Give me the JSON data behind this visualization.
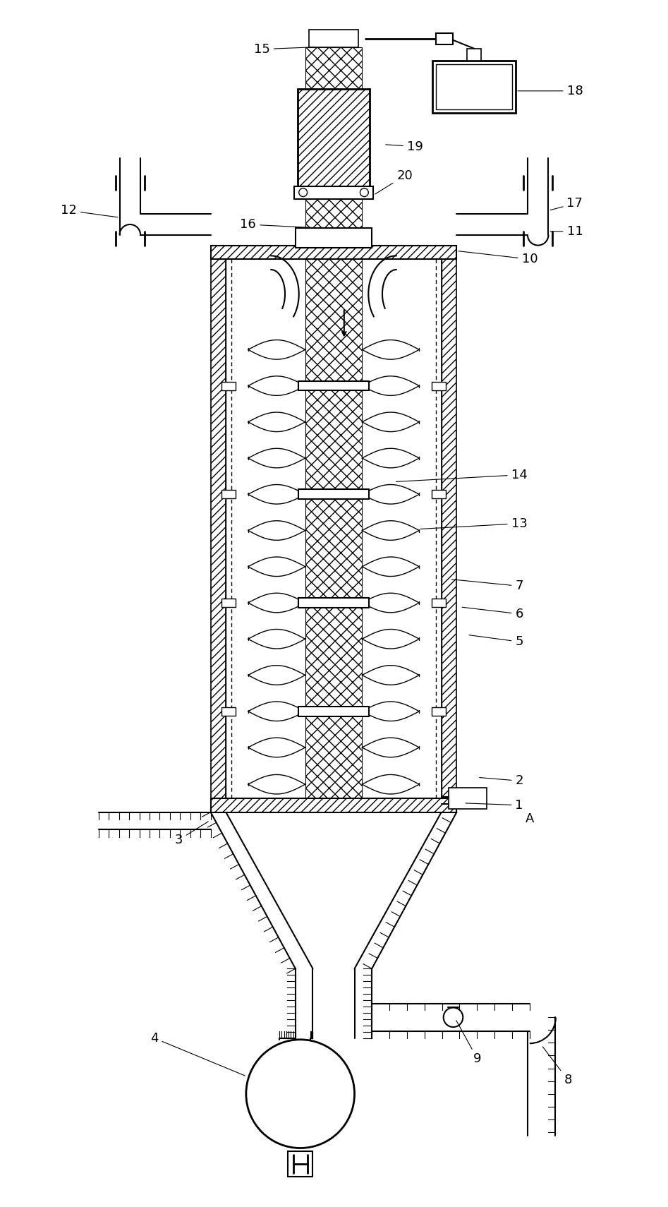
{
  "figure_width": 9.47,
  "figure_height": 17.1,
  "dpi": 100,
  "bg_color": "#ffffff",
  "line_color": "#000000"
}
